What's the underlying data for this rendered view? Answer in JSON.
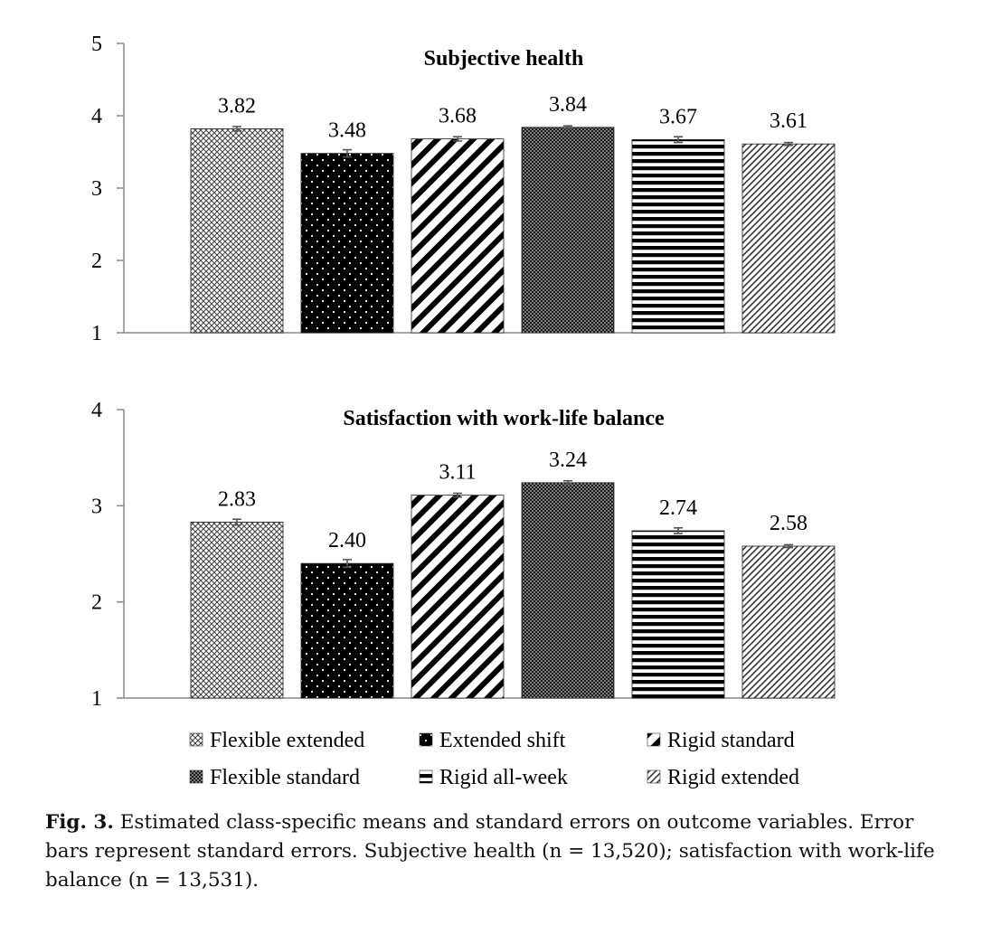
{
  "chart_data": [
    {
      "type": "bar",
      "title": "Subjective health",
      "categories": [
        "Flexible extended",
        "Extended shift",
        "Rigid standard",
        "Flexible standard",
        "Rigid all-week",
        "Rigid extended"
      ],
      "values": [
        3.82,
        3.48,
        3.68,
        3.84,
        3.67,
        3.61
      ],
      "value_labels": [
        "3.82",
        "3.48",
        "3.68",
        "3.84",
        "3.67",
        "3.61"
      ],
      "errors": [
        0.03,
        0.05,
        0.03,
        0.02,
        0.04,
        0.02
      ],
      "ylim": [
        1,
        5
      ],
      "yticks": [
        "1",
        "2",
        "3",
        "4",
        "5"
      ],
      "xlabel": "",
      "ylabel": "",
      "grid": false
    },
    {
      "type": "bar",
      "title": "Satisfaction with work-life balance",
      "categories": [
        "Flexible extended",
        "Extended shift",
        "Rigid standard",
        "Flexible standard",
        "Rigid all-week",
        "Rigid extended"
      ],
      "values": [
        2.83,
        2.4,
        3.11,
        3.24,
        2.74,
        2.58
      ],
      "value_labels": [
        "2.83",
        "2.40",
        "3.11",
        "3.24",
        "2.74",
        "2.58"
      ],
      "errors": [
        0.03,
        0.04,
        0.02,
        0.02,
        0.03,
        0.015
      ],
      "ylim": [
        1,
        4
      ],
      "yticks": [
        "1",
        "2",
        "3",
        "4"
      ],
      "xlabel": "",
      "ylabel": "",
      "grid": false
    }
  ],
  "legend": {
    "placement": "bottom",
    "items": [
      {
        "label": "Flexible extended",
        "pattern": "crosshatch"
      },
      {
        "label": "Extended shift",
        "pattern": "black-dots"
      },
      {
        "label": "Rigid standard",
        "pattern": "wide-diagonal"
      },
      {
        "label": "Flexible standard",
        "pattern": "dense-dots"
      },
      {
        "label": "Rigid all-week",
        "pattern": "horizontal"
      },
      {
        "label": "Rigid extended",
        "pattern": "fine-diagonal"
      }
    ]
  },
  "caption": {
    "label": "Fig. 3.",
    "text": "Estimated class-specific means and standard errors on outcome variables. Error bars represent standard errors. Subjective health (n = 13,520); satisfaction with work-life balance (n = 13,531)."
  }
}
